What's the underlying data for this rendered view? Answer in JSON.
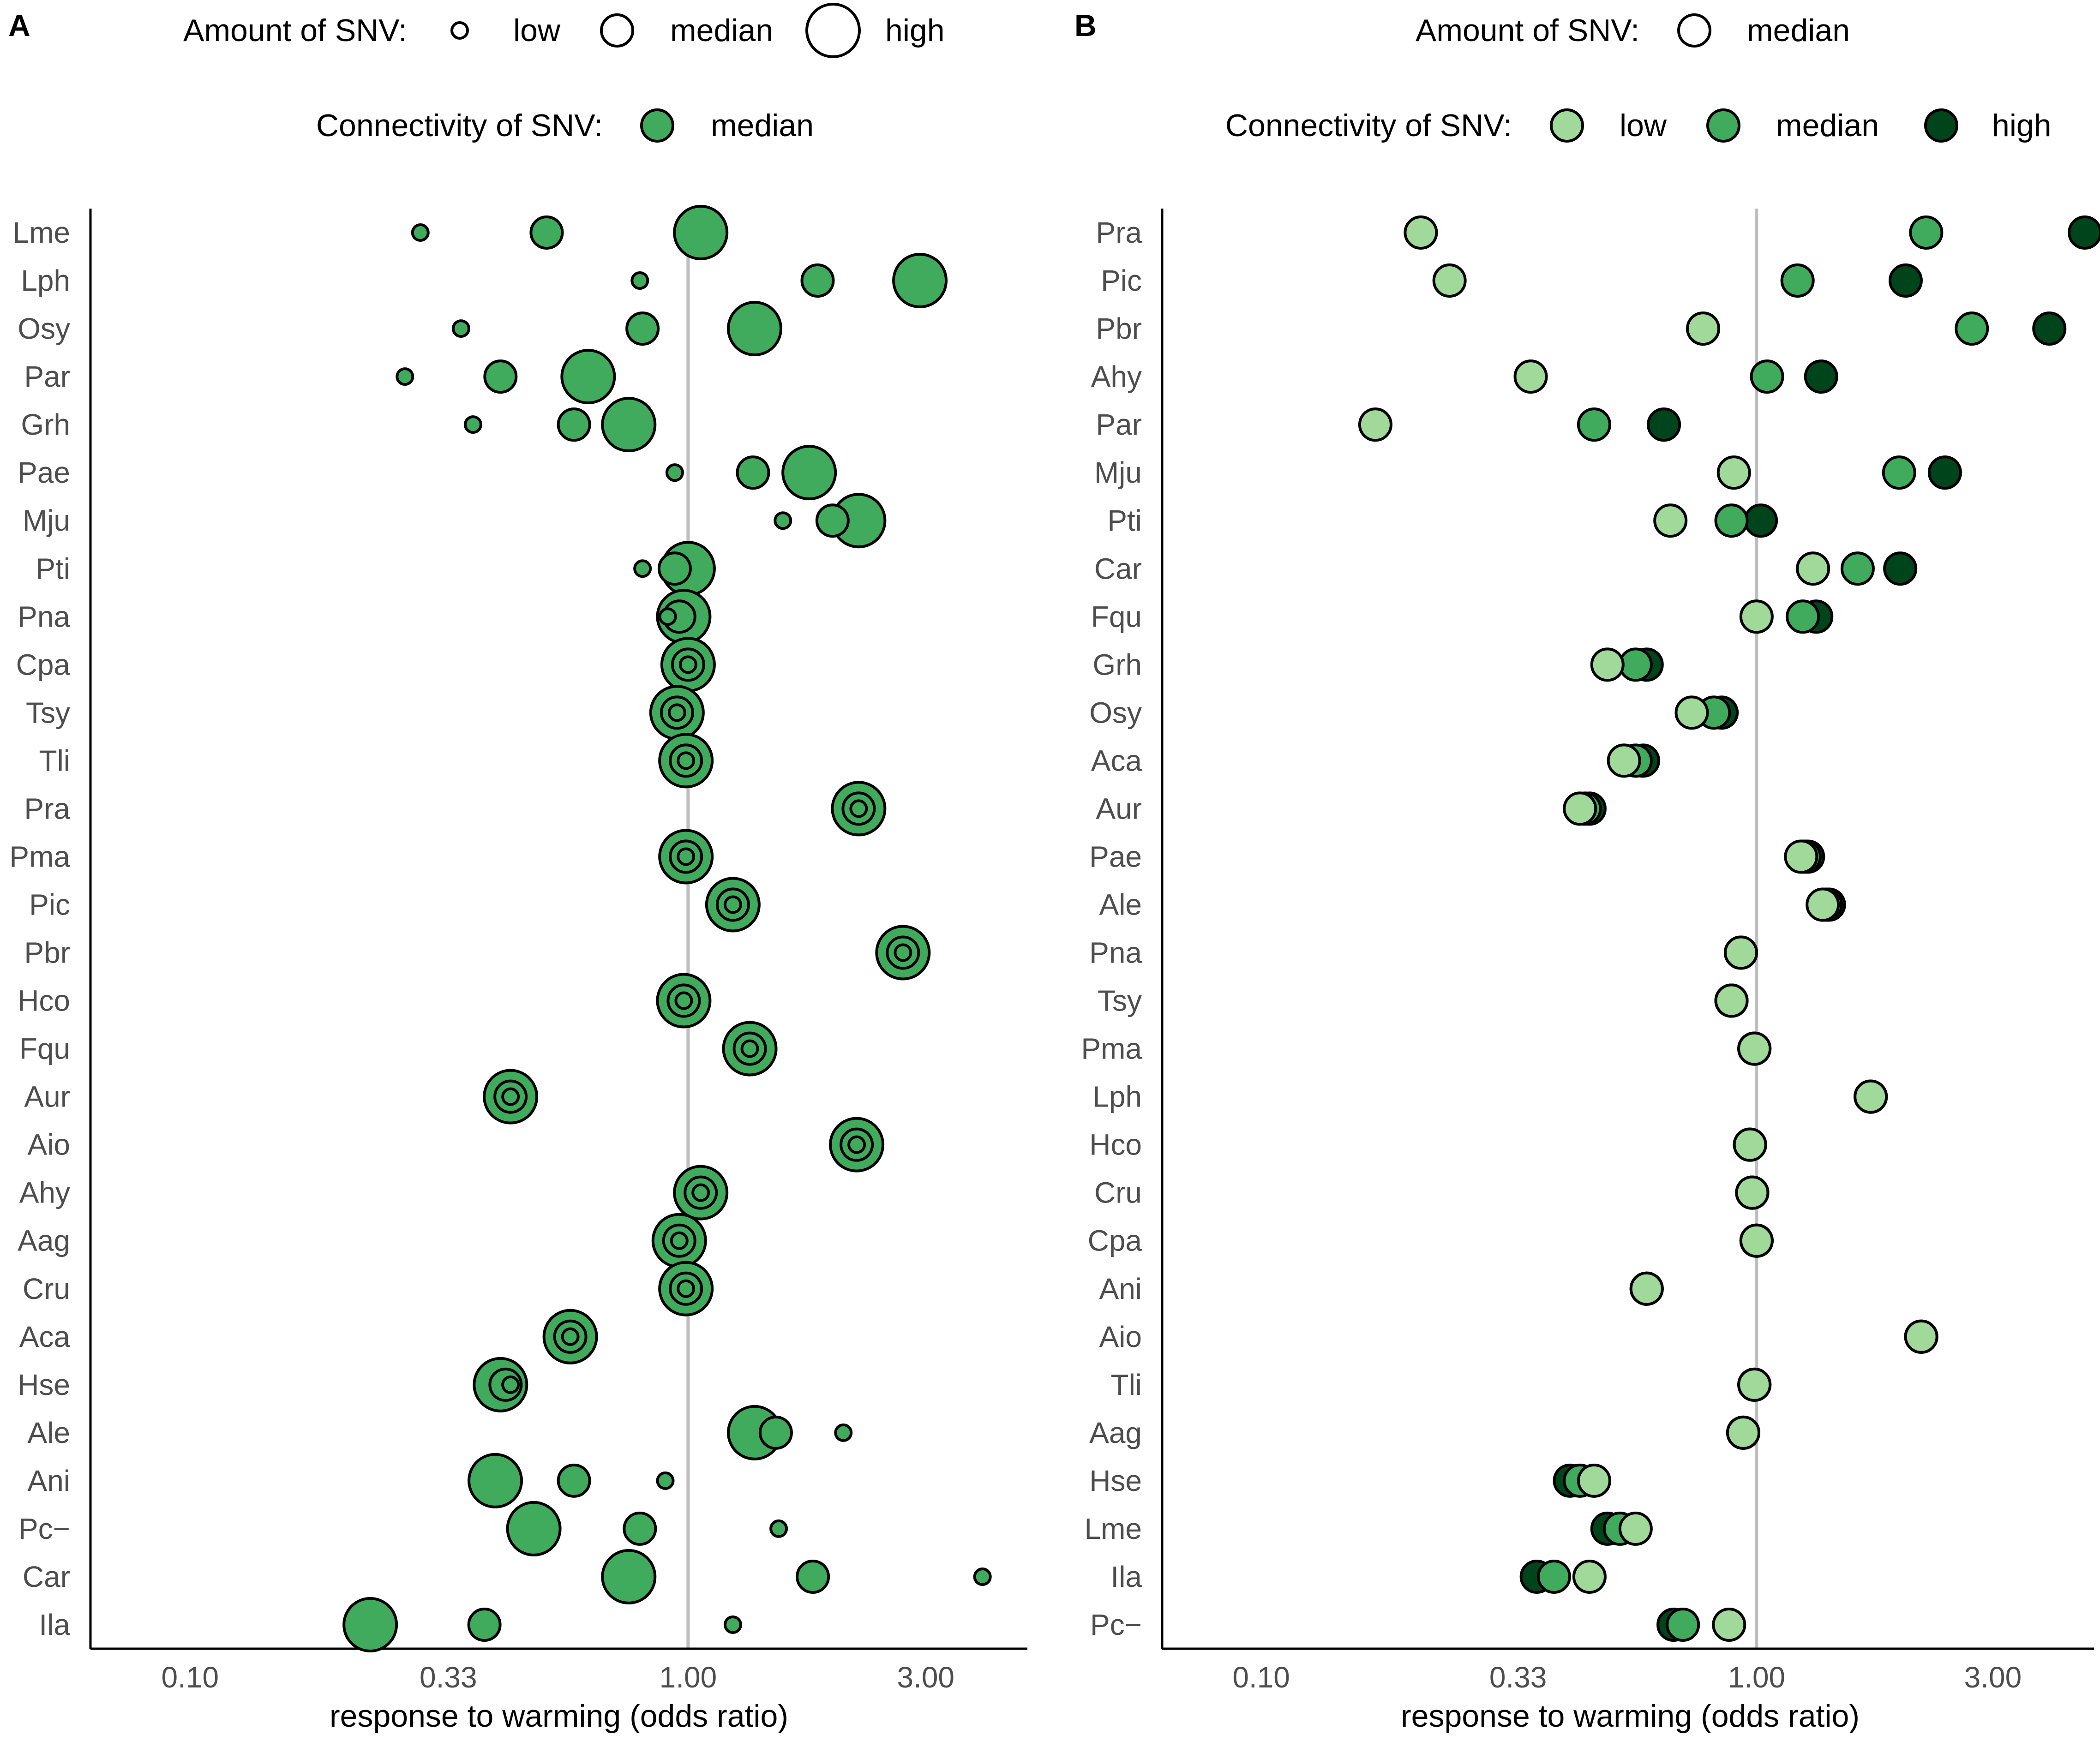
{
  "colors": {
    "low": "#a1d99b",
    "median": "#41ab5d",
    "high": "#00441b",
    "reference_line": "#bebebe",
    "axis": "#000000",
    "stroke": "#000000"
  },
  "chart_data": [
    {
      "type": "scatter",
      "panel": "A",
      "xlabel": "response to warming (odds ratio)",
      "xscale": "log",
      "xlim": [
        0.0631,
        4.8
      ],
      "xticks": [
        0.1,
        0.33,
        1.0,
        3.0
      ],
      "xtick_labels": [
        "0.10",
        "0.33",
        "1.00",
        "3.00"
      ],
      "reference_line": 1.0,
      "legend": {
        "amount_title": "Amount of SNV:",
        "amount_entries": [
          "low",
          "median",
          "high"
        ],
        "connectivity_title": "Connectivity of SNV:",
        "connectivity_entries": [
          "median"
        ]
      },
      "categories": [
        "Lme",
        "Lph",
        "Osy",
        "Par",
        "Grh",
        "Pae",
        "Mju",
        "Pti",
        "Pna",
        "Cpa",
        "Tsy",
        "Tli",
        "Pra",
        "Pma",
        "Pic",
        "Pbr",
        "Hco",
        "Fqu",
        "Aur",
        "Aio",
        "Ahy",
        "Aag",
        "Cru",
        "Aca",
        "Hse",
        "Ale",
        "Ani",
        "Pc−",
        "Car",
        "Ila"
      ],
      "series": [
        {
          "name": "high",
          "amount": "high",
          "connectivity": "median",
          "values": [
            1.06,
            2.92,
            1.36,
            0.63,
            0.76,
            1.75,
            2.2,
            1.0,
            0.98,
            1.0,
            0.95,
            0.99,
            2.2,
            0.99,
            1.23,
            2.7,
            0.98,
            1.33,
            0.44,
            2.18,
            1.06,
            0.96,
            0.99,
            0.58,
            0.42,
            1.36,
            0.41,
            0.49,
            0.76,
            0.23
          ]
        },
        {
          "name": "median",
          "amount": "median",
          "connectivity": "median",
          "values": [
            0.52,
            1.82,
            0.81,
            0.42,
            0.59,
            1.35,
            1.95,
            0.94,
            0.96,
            1.0,
            0.95,
            0.99,
            2.2,
            0.99,
            1.23,
            2.7,
            0.98,
            1.33,
            0.44,
            2.18,
            1.06,
            0.96,
            0.99,
            0.58,
            0.43,
            1.5,
            0.59,
            0.8,
            1.78,
            0.39
          ]
        },
        {
          "name": "low",
          "amount": "low",
          "connectivity": "median",
          "values": [
            0.29,
            0.8,
            0.35,
            0.27,
            0.37,
            0.94,
            1.55,
            0.81,
            0.91,
            1.0,
            0.95,
            0.99,
            2.2,
            0.99,
            1.23,
            2.7,
            0.98,
            1.33,
            0.44,
            2.18,
            1.06,
            0.96,
            0.99,
            0.58,
            0.44,
            2.05,
            0.9,
            1.52,
            3.9,
            1.23
          ]
        }
      ]
    },
    {
      "type": "scatter",
      "panel": "B",
      "xlabel": "response to warming (odds ratio)",
      "xscale": "log",
      "xlim": [
        0.0631,
        4.8
      ],
      "xticks": [
        0.1,
        0.33,
        1.0,
        3.0
      ],
      "xtick_labels": [
        "0.10",
        "0.33",
        "1.00",
        "3.00"
      ],
      "reference_line": 1.0,
      "legend": {
        "amount_title": "Amount of SNV:",
        "amount_entries": [
          "median"
        ],
        "connectivity_title": "Connectivity of SNV:",
        "connectivity_entries": [
          "low",
          "median",
          "high"
        ]
      },
      "categories": [
        "Pra",
        "Pic",
        "Pbr",
        "Ahy",
        "Par",
        "Mju",
        "Pti",
        "Car",
        "Fqu",
        "Grh",
        "Osy",
        "Aca",
        "Aur",
        "Pae",
        "Ale",
        "Pna",
        "Tsy",
        "Pma",
        "Lph",
        "Hco",
        "Cru",
        "Cpa",
        "Ani",
        "Aio",
        "Tli",
        "Aag",
        "Hse",
        "Lme",
        "Ila",
        "Pc−"
      ],
      "series": [
        {
          "name": "high",
          "amount": "median",
          "connectivity": "high",
          "values": [
            4.6,
            2.0,
            3.9,
            1.35,
            0.65,
            2.4,
            1.02,
            1.95,
            1.32,
            0.6,
            0.85,
            0.59,
            0.46,
            1.27,
            1.4,
            0.93,
            0.89,
            0.99,
            1.7,
            0.97,
            0.98,
            1.0,
            0.6,
            2.15,
            0.99,
            0.94,
            0.42,
            0.5,
            0.36,
            0.68
          ]
        },
        {
          "name": "median",
          "amount": "median",
          "connectivity": "median",
          "values": [
            2.2,
            1.21,
            2.72,
            1.05,
            0.47,
            1.94,
            0.89,
            1.6,
            1.24,
            0.57,
            0.82,
            0.57,
            0.45,
            1.25,
            1.38,
            0.93,
            0.89,
            0.99,
            1.7,
            0.97,
            0.98,
            1.0,
            0.6,
            2.15,
            0.99,
            0.94,
            0.44,
            0.53,
            0.39,
            0.71
          ]
        },
        {
          "name": "low",
          "amount": "median",
          "connectivity": "low",
          "values": [
            0.21,
            0.24,
            0.78,
            0.35,
            0.17,
            0.9,
            0.67,
            1.3,
            1.0,
            0.5,
            0.74,
            0.54,
            0.44,
            1.23,
            1.36,
            0.93,
            0.89,
            0.99,
            1.7,
            0.97,
            0.98,
            1.0,
            0.6,
            2.15,
            0.99,
            0.94,
            0.47,
            0.57,
            0.46,
            0.88
          ]
        }
      ]
    }
  ]
}
